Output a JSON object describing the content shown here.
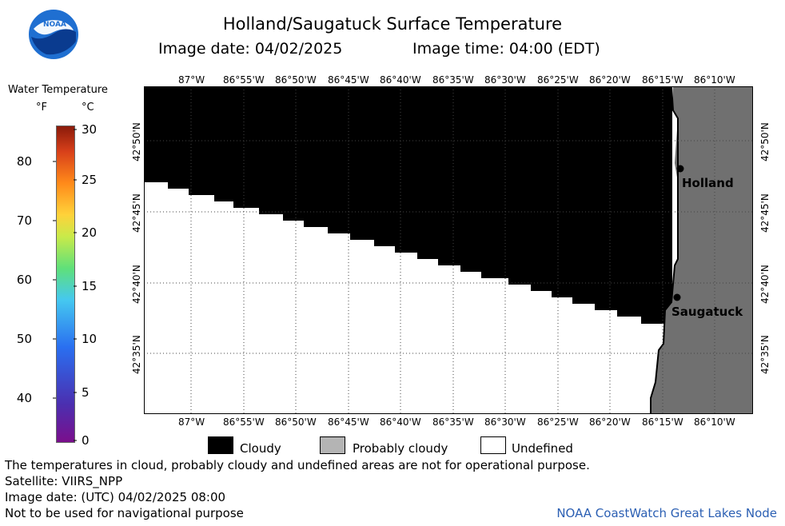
{
  "title": "Holland/Saugatuck Surface Temperature",
  "image_date_label": "Image date: 04/02/2025",
  "image_time_label": "Image time: 04:00 (EDT)",
  "logo_text": "NOAA",
  "legend": {
    "title": "Water Temperature",
    "unit_f": "°F",
    "unit_c": "°C",
    "f_ticks": [
      "80",
      "70",
      "60",
      "50",
      "40"
    ],
    "c_ticks": [
      "30",
      "25",
      "20",
      "15",
      "10",
      "5",
      "0"
    ]
  },
  "lon_labels": [
    "87°W",
    "86°55'W",
    "86°50'W",
    "86°45'W",
    "86°40'W",
    "86°35'W",
    "86°30'W",
    "86°25'W",
    "86°20'W",
    "86°15'W",
    "86°10'W"
  ],
  "lat_labels": [
    "42°50'N",
    "42°45'N",
    "42°40'N",
    "42°35'N"
  ],
  "places": {
    "holland": "Holland",
    "saugatuck": "Saugatuck"
  },
  "categories": {
    "cloudy": "Cloudy",
    "probably_cloudy": "Probably cloudy",
    "undefined": "Undefined"
  },
  "colors": {
    "cloudy": "#000000",
    "probably_cloudy": "#b4b4b4",
    "undefined": "#ffffff",
    "land": "#707070",
    "credit": "#2b5fb3"
  },
  "notes": {
    "line1": "The temperatures in cloud, probably cloudy and undefined areas are not for operational purpose.",
    "line2": "Satellite: VIIRS_NPP",
    "line3": "Image date: (UTC) 04/02/2025  08:00",
    "line4": "Not to be used for navigational purpose"
  },
  "credit": "NOAA CoastWatch Great Lakes Node"
}
